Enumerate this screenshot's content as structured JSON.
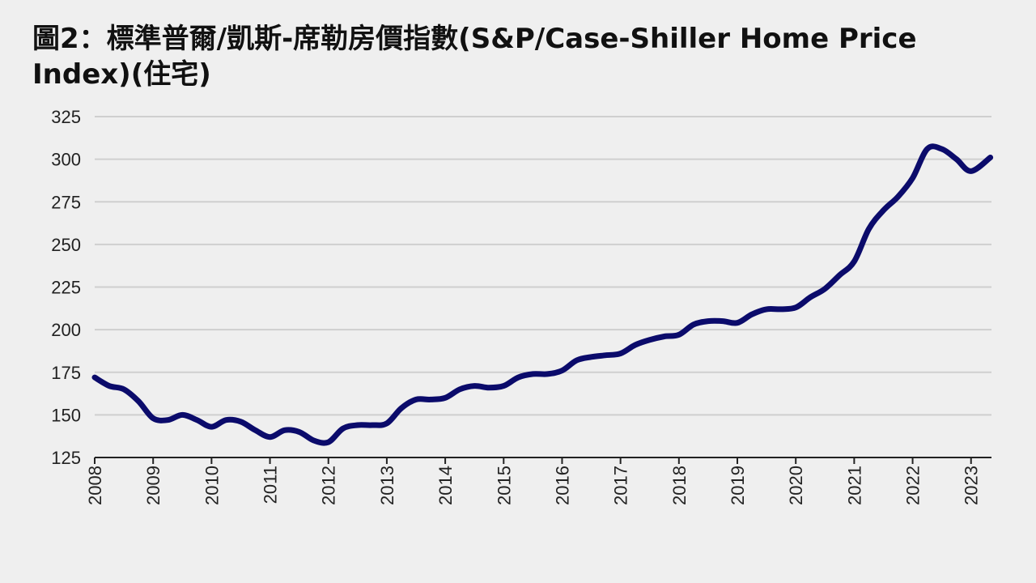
{
  "chart_data": {
    "type": "line",
    "title": "圖2：標準普爾/凱斯-席勒房價指數(S&P/Case-Shiller Home Price Index)(住宅)",
    "xlabel": "",
    "ylabel": "",
    "ylim": [
      125,
      325
    ],
    "yticks": [
      125,
      150,
      175,
      200,
      225,
      250,
      275,
      300,
      325
    ],
    "xlim": [
      2008,
      2023.35
    ],
    "xticks": [
      "2008",
      "2009",
      "2010",
      "2011",
      "2012",
      "2013",
      "2014",
      "2015",
      "2016",
      "2017",
      "2018",
      "2019",
      "2020",
      "2021",
      "2022",
      "2023"
    ],
    "grid": true,
    "legend": "none",
    "line_color": "#0b0b6b",
    "series": [
      {
        "x": [
          2008.0,
          2008.25,
          2008.5,
          2008.75,
          2009.0,
          2009.25,
          2009.5,
          2009.75,
          2010.0,
          2010.25,
          2010.5,
          2010.75,
          2011.0,
          2011.25,
          2011.5,
          2011.75,
          2012.0,
          2012.25,
          2012.5,
          2012.75,
          2013.0,
          2013.25,
          2013.5,
          2013.75,
          2014.0,
          2014.25,
          2014.5,
          2014.75,
          2015.0,
          2015.25,
          2015.5,
          2015.75,
          2016.0,
          2016.25,
          2016.5,
          2016.75,
          2017.0,
          2017.25,
          2017.5,
          2017.75,
          2018.0,
          2018.25,
          2018.5,
          2018.75,
          2019.0,
          2019.25,
          2019.5,
          2019.75,
          2020.0,
          2020.25,
          2020.5,
          2020.75,
          2021.0,
          2021.25,
          2021.5,
          2021.75,
          2022.0,
          2022.25,
          2022.5,
          2022.75,
          2023.0,
          2023.33
        ],
        "values": [
          172,
          167,
          165,
          158,
          148,
          147,
          150,
          147,
          143,
          147,
          146,
          141,
          137,
          141,
          140,
          135,
          134,
          142,
          144,
          144,
          145,
          154,
          159,
          159,
          160,
          165,
          167,
          166,
          167,
          172,
          174,
          174,
          176,
          182,
          184,
          185,
          186,
          191,
          194,
          196,
          197,
          203,
          205,
          205,
          204,
          209,
          212,
          212,
          213,
          219,
          224,
          232,
          240,
          259,
          270,
          278,
          289,
          306,
          306,
          300,
          293,
          301
        ]
      }
    ]
  }
}
